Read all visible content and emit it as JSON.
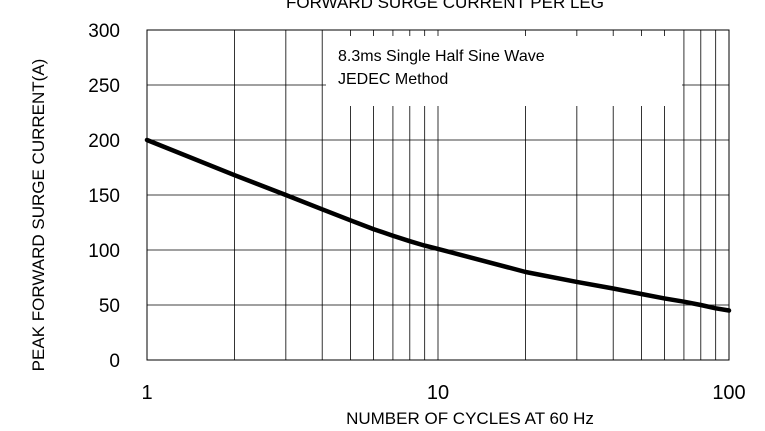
{
  "chart_data": {
    "type": "line",
    "title": "FORWARD SURGE CURRENT PER LEG",
    "xlabel": "NUMBER OF CYCLES AT 60 Hz",
    "ylabel": "PEAK FORWARD SURGE CURRENT(A)",
    "x_scale": "log",
    "xlim": [
      1,
      100
    ],
    "ylim": [
      0,
      300
    ],
    "x_ticks": [
      "1",
      "10",
      "100"
    ],
    "y_ticks": [
      "0",
      "50",
      "100",
      "150",
      "200",
      "250",
      "300"
    ],
    "grid": true,
    "annotations": [
      "8.3ms Single Half Sine Wave",
      "JEDEC Method"
    ],
    "series": [
      {
        "color": "#000000",
        "x": [
          1,
          2,
          3,
          4,
          5,
          6,
          7,
          8,
          9,
          10,
          20,
          30,
          40,
          50,
          60,
          70,
          80,
          90,
          100
        ],
        "y": [
          200,
          168,
          150,
          137,
          127,
          119,
          113,
          108,
          104,
          101,
          80,
          71,
          65,
          60,
          56,
          53,
          50,
          47,
          45
        ]
      }
    ]
  }
}
